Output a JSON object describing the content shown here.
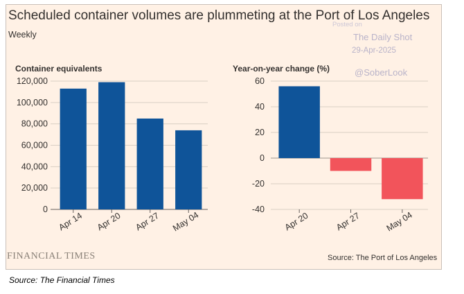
{
  "title": "Scheduled container volumes are plummeting at the Port of Los Angeles",
  "subtitle": "Weekly",
  "brand": "FINANCIAL TIMES",
  "source_line": "Source: The Port of Los Angeles",
  "caption": "Source: The Financial Times",
  "watermark": {
    "posted_on": "Posted on",
    "name": "The Daily Shot",
    "date": "29-Apr-2025",
    "handle": "@SoberLook"
  },
  "colors": {
    "background": "#fff1e5",
    "positive": "#0f5499",
    "negative": "#f2545b",
    "grid": "#d9cfc4",
    "text": "#33302e"
  },
  "chart_data": [
    {
      "type": "bar",
      "title": "Container equivalents",
      "xlabel": "",
      "ylabel": "Container equivalents",
      "categories": [
        "Apr 14",
        "Apr 20",
        "Apr 27",
        "May 04"
      ],
      "values": [
        113000,
        119000,
        85000,
        74000
      ],
      "ylim": [
        0,
        120000
      ],
      "yticks": [
        0,
        20000,
        40000,
        60000,
        80000,
        100000,
        120000
      ],
      "ytick_labels": [
        "0",
        "20,000",
        "40,000",
        "60,000",
        "80,000",
        "100,000",
        "120,000"
      ],
      "grid": true
    },
    {
      "type": "bar",
      "title": "Year-on-year change (%)",
      "xlabel": "",
      "ylabel": "Year-on-year change (%)",
      "categories": [
        "Apr 20",
        "Apr 27",
        "May 04"
      ],
      "values": [
        56,
        -10,
        -32
      ],
      "ylim": [
        -40,
        60
      ],
      "yticks": [
        -40,
        -20,
        0,
        20,
        40,
        60
      ],
      "ytick_labels": [
        "-40",
        "-20",
        "0",
        "20",
        "40",
        "60"
      ],
      "grid": true
    }
  ]
}
